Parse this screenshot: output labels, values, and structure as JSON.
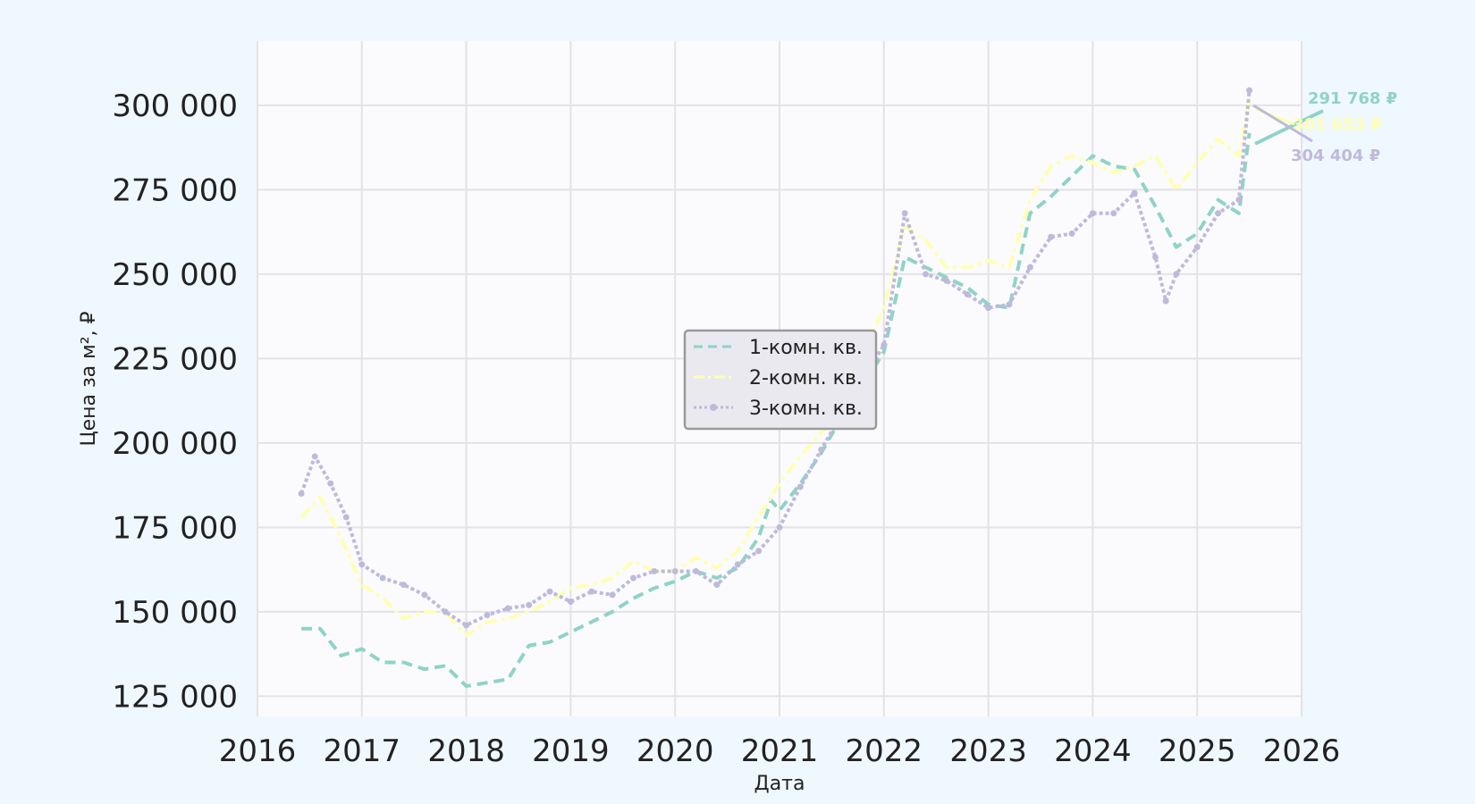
{
  "chart_data": {
    "type": "line",
    "title": "",
    "xlabel": "Дата",
    "ylabel": "Цена за м², ₽",
    "xlim": [
      2016.0,
      2026.0
    ],
    "ylim": [
      119000,
      319000
    ],
    "x_ticks": [
      2016,
      2017,
      2018,
      2019,
      2020,
      2021,
      2022,
      2023,
      2024,
      2025,
      2026
    ],
    "y_ticks": [
      125000,
      150000,
      175000,
      200000,
      225000,
      250000,
      275000,
      300000
    ],
    "y_tick_labels": [
      "125 000",
      "150 000",
      "175 000",
      "200 000",
      "225 000",
      "250 000",
      "275 000",
      "300 000"
    ],
    "grid": true,
    "legend_position": "center",
    "series": [
      {
        "name": "1-комн. кв.",
        "color": "#8fd3c7",
        "style": "dashed",
        "x": [
          2016.42,
          2016.6,
          2016.8,
          2017.0,
          2017.2,
          2017.4,
          2017.6,
          2017.8,
          2018.0,
          2018.2,
          2018.4,
          2018.6,
          2018.8,
          2019.0,
          2019.2,
          2019.4,
          2019.6,
          2019.8,
          2020.0,
          2020.2,
          2020.4,
          2020.6,
          2020.8,
          2020.92,
          2021.0,
          2021.2,
          2021.4,
          2021.6,
          2021.8,
          2022.0,
          2022.2,
          2022.4,
          2022.6,
          2022.8,
          2023.0,
          2023.2,
          2023.4,
          2023.6,
          2023.8,
          2024.0,
          2024.2,
          2024.4,
          2024.6,
          2024.8,
          2025.0,
          2025.2,
          2025.4,
          2025.5
        ],
        "values": [
          145000,
          145000,
          137000,
          139000,
          135000,
          135000,
          133000,
          134000,
          128000,
          129000,
          130000,
          140000,
          141000,
          144000,
          147000,
          150000,
          154000,
          157000,
          159000,
          162000,
          160000,
          163000,
          172000,
          183000,
          180000,
          188000,
          197000,
          208000,
          217000,
          227000,
          255000,
          252000,
          249000,
          246000,
          241000,
          240000,
          268000,
          273000,
          279000,
          285000,
          282000,
          281000,
          270000,
          258000,
          262000,
          272000,
          268000,
          291768
        ]
      },
      {
        "name": "2-комн. кв.",
        "color": "#ffffb3",
        "style": "dash-dot",
        "x": [
          2016.42,
          2016.6,
          2016.8,
          2017.0,
          2017.2,
          2017.4,
          2017.6,
          2017.8,
          2018.0,
          2018.2,
          2018.4,
          2018.6,
          2018.8,
          2019.0,
          2019.2,
          2019.4,
          2019.6,
          2019.8,
          2020.0,
          2020.2,
          2020.4,
          2020.6,
          2020.8,
          2021.0,
          2021.2,
          2021.4,
          2021.6,
          2021.8,
          2022.0,
          2022.2,
          2022.4,
          2022.6,
          2022.8,
          2023.0,
          2023.2,
          2023.4,
          2023.6,
          2023.8,
          2024.0,
          2024.2,
          2024.4,
          2024.6,
          2024.8,
          2025.0,
          2025.2,
          2025.4,
          2025.5
        ],
        "values": [
          178000,
          184000,
          172000,
          158000,
          154000,
          148000,
          150000,
          150000,
          143000,
          147000,
          148000,
          150000,
          153000,
          157000,
          158000,
          160000,
          165000,
          162000,
          162000,
          166000,
          163000,
          168000,
          178000,
          188000,
          196000,
          203000,
          212000,
          226000,
          240000,
          264000,
          260000,
          252000,
          252000,
          254000,
          252000,
          272000,
          282000,
          285000,
          283000,
          280000,
          282000,
          285000,
          275000,
          283000,
          290000,
          285000,
          301653
        ]
      },
      {
        "name": "3-комн. кв.",
        "color": "#bebada",
        "style": "dotted-marker",
        "x": [
          2016.42,
          2016.55,
          2016.7,
          2016.85,
          2017.0,
          2017.2,
          2017.4,
          2017.6,
          2017.8,
          2018.0,
          2018.2,
          2018.4,
          2018.6,
          2018.8,
          2019.0,
          2019.2,
          2019.4,
          2019.6,
          2019.8,
          2020.0,
          2020.2,
          2020.4,
          2020.6,
          2020.8,
          2021.0,
          2021.2,
          2021.4,
          2021.6,
          2021.8,
          2022.0,
          2022.2,
          2022.4,
          2022.6,
          2022.8,
          2023.0,
          2023.2,
          2023.4,
          2023.6,
          2023.8,
          2024.0,
          2024.2,
          2024.4,
          2024.6,
          2024.7,
          2024.8,
          2025.0,
          2025.2,
          2025.4,
          2025.5
        ],
        "values": [
          185000,
          196000,
          188000,
          178000,
          164000,
          160000,
          158000,
          155000,
          150000,
          146000,
          149000,
          151000,
          152000,
          156000,
          153000,
          156000,
          155000,
          160000,
          162000,
          162000,
          162000,
          158000,
          164000,
          168000,
          175000,
          187000,
          198000,
          209000,
          219000,
          229000,
          268000,
          250000,
          248000,
          244000,
          240000,
          241000,
          252000,
          261000,
          262000,
          268000,
          268000,
          274000,
          255000,
          242000,
          250000,
          258000,
          268000,
          272000,
          304404
        ]
      }
    ],
    "annotations": [
      {
        "text": "291 768 ₽",
        "color": "#8fd3c7"
      },
      {
        "text": "301 653 ₽",
        "color": "#ffffb3"
      },
      {
        "text": "304 404 ₽",
        "color": "#bebada"
      }
    ]
  }
}
